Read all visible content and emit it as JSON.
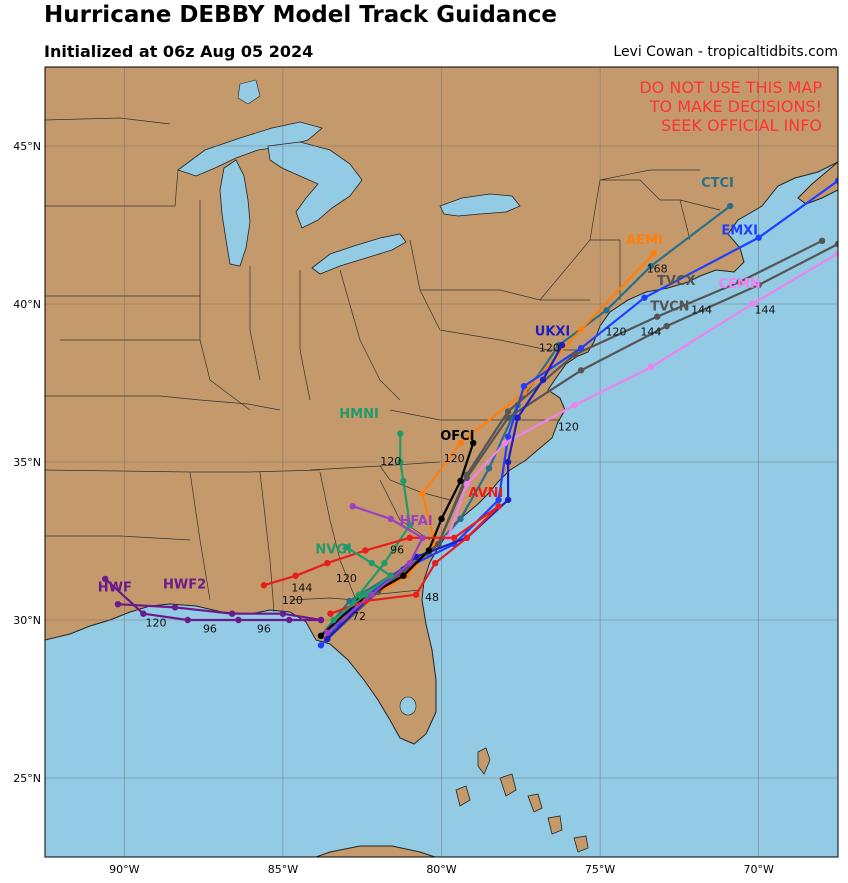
{
  "header": {
    "title": "Hurricane DEBBY Model Track Guidance",
    "initialized": "Initialized at 06z Aug 05 2024",
    "credit": "Levi Cowan - tropicaltidbits.com"
  },
  "warning": [
    "DO NOT USE THIS MAP",
    "TO MAKE DECISIONS!",
    "SEEK OFFICIAL INFO"
  ],
  "colors": {
    "ocean": "#94cbe4",
    "land": "#c49a6c",
    "border": "#333333",
    "warning": "#ff3333"
  },
  "map_data": {
    "extent": {
      "lon": [
        -92.5,
        -67.5
      ],
      "lat": [
        22.5,
        47.5
      ]
    },
    "lon_ticks": [
      -90,
      -85,
      -80,
      -75,
      -70
    ],
    "lon_labels": [
      "90°W",
      "85°W",
      "80°W",
      "75°W",
      "70°W"
    ],
    "lat_ticks": [
      25,
      30,
      35,
      40,
      45
    ],
    "lat_labels": [
      "25°N",
      "30°N",
      "35°N",
      "40°N",
      "45°N"
    ],
    "tracks": [
      {
        "name": "CTCI",
        "color": "#2a6f8a",
        "label_at": [
          -71.3,
          43.7
        ],
        "hour_labels": [],
        "points": [
          [
            -83.8,
            29.5
          ],
          [
            -82.9,
            30.6
          ],
          [
            -81.6,
            31.4
          ],
          [
            -80.4,
            32.1
          ],
          [
            -79.4,
            33.2
          ],
          [
            -78.5,
            34.8
          ],
          [
            -77.6,
            36.8
          ],
          [
            -76.3,
            38.7
          ],
          [
            -74.8,
            39.8
          ],
          [
            -73.4,
            41.2
          ],
          [
            -70.9,
            43.1
          ]
        ]
      },
      {
        "name": "AEMI",
        "color": "#ff7f0e",
        "label_at": [
          -73.6,
          41.9
        ],
        "hour_labels": [
          {
            "text": "168",
            "at": [
              -73.2,
              41.0
            ]
          }
        ],
        "points": [
          [
            -83.6,
            29.6
          ],
          [
            -82.4,
            30.6
          ],
          [
            -81.1,
            31.4
          ],
          [
            -80.2,
            32.4
          ],
          [
            -80.6,
            34.0
          ],
          [
            -79.4,
            35.6
          ],
          [
            -77.4,
            37.2
          ],
          [
            -75.6,
            39.2
          ],
          [
            -73.3,
            41.6
          ]
        ]
      },
      {
        "name": "EMXI",
        "color": "#1f3fff",
        "label_at": [
          -70.6,
          42.2
        ],
        "hour_labels": [
          {
            "text": "120",
            "at": [
              -74.5,
              39.0
            ]
          }
        ],
        "points": [
          [
            -83.8,
            29.2
          ],
          [
            -82.6,
            30.6
          ],
          [
            -81.2,
            31.6
          ],
          [
            -79.6,
            32.4
          ],
          [
            -78.2,
            33.8
          ],
          [
            -77.9,
            35.8
          ],
          [
            -77.4,
            37.4
          ],
          [
            -75.6,
            38.6
          ],
          [
            -73.6,
            40.2
          ],
          [
            -70.0,
            42.1
          ],
          [
            -67.5,
            43.9
          ]
        ]
      },
      {
        "name": "TVCX",
        "color": "#555555",
        "label_at": [
          -72.6,
          40.6
        ],
        "hour_labels": [
          {
            "text": "144",
            "at": [
              -71.8,
              39.7
            ]
          }
        ],
        "points": [
          [
            -83.6,
            29.4
          ],
          [
            -82.0,
            30.9
          ],
          [
            -80.1,
            32.4
          ],
          [
            -79.2,
            34.6
          ],
          [
            -77.9,
            36.6
          ],
          [
            -75.8,
            38.4
          ],
          [
            -73.2,
            39.6
          ],
          [
            -70.6,
            40.7
          ],
          [
            -68.0,
            42.0
          ]
        ]
      },
      {
        "name": "TVCN",
        "color": "#555555",
        "label_at": [
          -72.8,
          39.8
        ],
        "hour_labels": [
          {
            "text": "144",
            "at": [
              -73.4,
              39.0
            ]
          }
        ],
        "points": [
          [
            -83.6,
            29.4
          ],
          [
            -82.0,
            30.9
          ],
          [
            -80.1,
            32.4
          ],
          [
            -79.2,
            34.5
          ],
          [
            -77.9,
            36.4
          ],
          [
            -75.6,
            37.9
          ],
          [
            -72.9,
            39.3
          ],
          [
            -70.0,
            40.6
          ],
          [
            -67.5,
            41.9
          ]
        ]
      },
      {
        "name": "CEMN",
        "color": "#ee82ee",
        "label_at": [
          -70.6,
          40.5
        ],
        "hour_labels": [
          {
            "text": "120",
            "at": [
              -76.0,
              36.0
            ]
          },
          {
            "text": "144",
            "at": [
              -69.8,
              39.7
            ]
          }
        ],
        "points": [
          [
            -79.8,
            32.6
          ],
          [
            -79.2,
            34.3
          ],
          [
            -78.0,
            35.6
          ],
          [
            -75.8,
            36.8
          ],
          [
            -73.4,
            38.0
          ],
          [
            -70.2,
            40.0
          ],
          [
            -67.5,
            41.6
          ]
        ]
      },
      {
        "name": "UKXI",
        "color": "#1f1fbf",
        "label_at": [
          -76.5,
          39.0
        ],
        "hour_labels": [
          {
            "text": "120",
            "at": [
              -76.6,
              38.5
            ]
          }
        ],
        "points": [
          [
            -83.6,
            29.4
          ],
          [
            -82.2,
            30.8
          ],
          [
            -80.8,
            32.0
          ],
          [
            -79.2,
            32.6
          ],
          [
            -77.9,
            33.8
          ],
          [
            -77.9,
            35.0
          ],
          [
            -77.6,
            36.4
          ],
          [
            -76.8,
            37.6
          ],
          [
            -76.2,
            38.7
          ]
        ]
      },
      {
        "name": "HMNI",
        "color": "#1f9a6a",
        "label_at": [
          -82.6,
          36.4
        ],
        "hour_labels": [
          {
            "text": "120",
            "at": [
              -81.6,
              34.9
            ]
          }
        ],
        "points": [
          [
            -83.4,
            29.8
          ],
          [
            -82.6,
            30.8
          ],
          [
            -81.8,
            31.8
          ],
          [
            -81.0,
            33.0
          ],
          [
            -81.2,
            34.4
          ],
          [
            -81.3,
            35.0
          ],
          [
            -81.3,
            35.9
          ]
        ]
      },
      {
        "name": "OFCI",
        "color": "#000000",
        "label_at": [
          -79.5,
          35.7
        ],
        "hour_labels": [
          {
            "text": "120",
            "at": [
              -79.6,
              35.0
            ]
          }
        ],
        "points": [
          [
            -83.8,
            29.5
          ],
          [
            -82.6,
            30.6
          ],
          [
            -81.2,
            31.4
          ],
          [
            -80.4,
            32.2
          ],
          [
            -80.0,
            33.2
          ],
          [
            -79.4,
            34.4
          ],
          [
            -79.0,
            35.6
          ]
        ]
      },
      {
        "name": "AVNI",
        "color": "#e61e1e",
        "label_at": [
          -78.6,
          33.9
        ],
        "hour_labels": [
          {
            "text": "48",
            "at": [
              -80.3,
              30.6
            ]
          },
          {
            "text": "72",
            "at": [
              -82.6,
              30.0
            ]
          },
          {
            "text": "96",
            "at": [
              -81.4,
              32.1
            ]
          },
          {
            "text": "120",
            "at": [
              -84.7,
              30.5
            ]
          },
          {
            "text": "144",
            "at": [
              -84.4,
              30.9
            ]
          }
        ],
        "points": [
          [
            -83.5,
            30.2
          ],
          [
            -82.4,
            30.6
          ],
          [
            -80.8,
            30.8
          ],
          [
            -80.2,
            31.8
          ],
          [
            -79.2,
            32.6
          ],
          [
            -78.2,
            33.6
          ],
          [
            -79.6,
            32.6
          ],
          [
            -81.0,
            32.6
          ],
          [
            -82.4,
            32.2
          ],
          [
            -83.6,
            31.8
          ],
          [
            -84.6,
            31.4
          ],
          [
            -85.6,
            31.1
          ]
        ]
      },
      {
        "name": "HFAI",
        "color": "#9b40c0",
        "label_at": [
          -80.8,
          33.0
        ],
        "hour_labels": [],
        "points": [
          [
            -83.6,
            29.6
          ],
          [
            -82.2,
            30.8
          ],
          [
            -81.0,
            31.8
          ],
          [
            -80.6,
            32.6
          ],
          [
            -81.6,
            33.2
          ],
          [
            -82.8,
            33.6
          ]
        ]
      },
      {
        "name": "NVGI",
        "color": "#1f9a6a",
        "label_at": [
          -83.4,
          32.1
        ],
        "hour_labels": [
          {
            "text": "120",
            "at": [
              -83.0,
              31.2
            ]
          }
        ],
        "points": [
          [
            -83.4,
            30.0
          ],
          [
            -82.4,
            30.8
          ],
          [
            -81.6,
            31.4
          ],
          [
            -82.2,
            31.8
          ],
          [
            -83.0,
            32.3
          ]
        ]
      },
      {
        "name": "HWF",
        "color": "#6a1a8a",
        "label_at": [
          -90.3,
          30.9
        ],
        "hour_labels": [
          {
            "text": "120",
            "at": [
              -89.0,
              29.8
            ]
          },
          {
            "text": "96",
            "at": [
              -87.3,
              29.6
            ]
          }
        ],
        "points": [
          [
            -83.8,
            30.0
          ],
          [
            -84.8,
            30.0
          ],
          [
            -86.4,
            30.0
          ],
          [
            -88.0,
            30.0
          ],
          [
            -89.4,
            30.2
          ],
          [
            -90.6,
            31.3
          ]
        ]
      },
      {
        "name": "HWF2",
        "color": "#6a1a8a",
        "label_at": [
          -88.1,
          31.0
        ],
        "hour_labels": [
          {
            "text": "96",
            "at": [
              -85.6,
              29.6
            ]
          }
        ],
        "points": [
          [
            -83.8,
            30.0
          ],
          [
            -85.0,
            30.2
          ],
          [
            -86.6,
            30.2
          ],
          [
            -88.4,
            30.4
          ],
          [
            -90.2,
            30.5
          ]
        ]
      }
    ]
  }
}
